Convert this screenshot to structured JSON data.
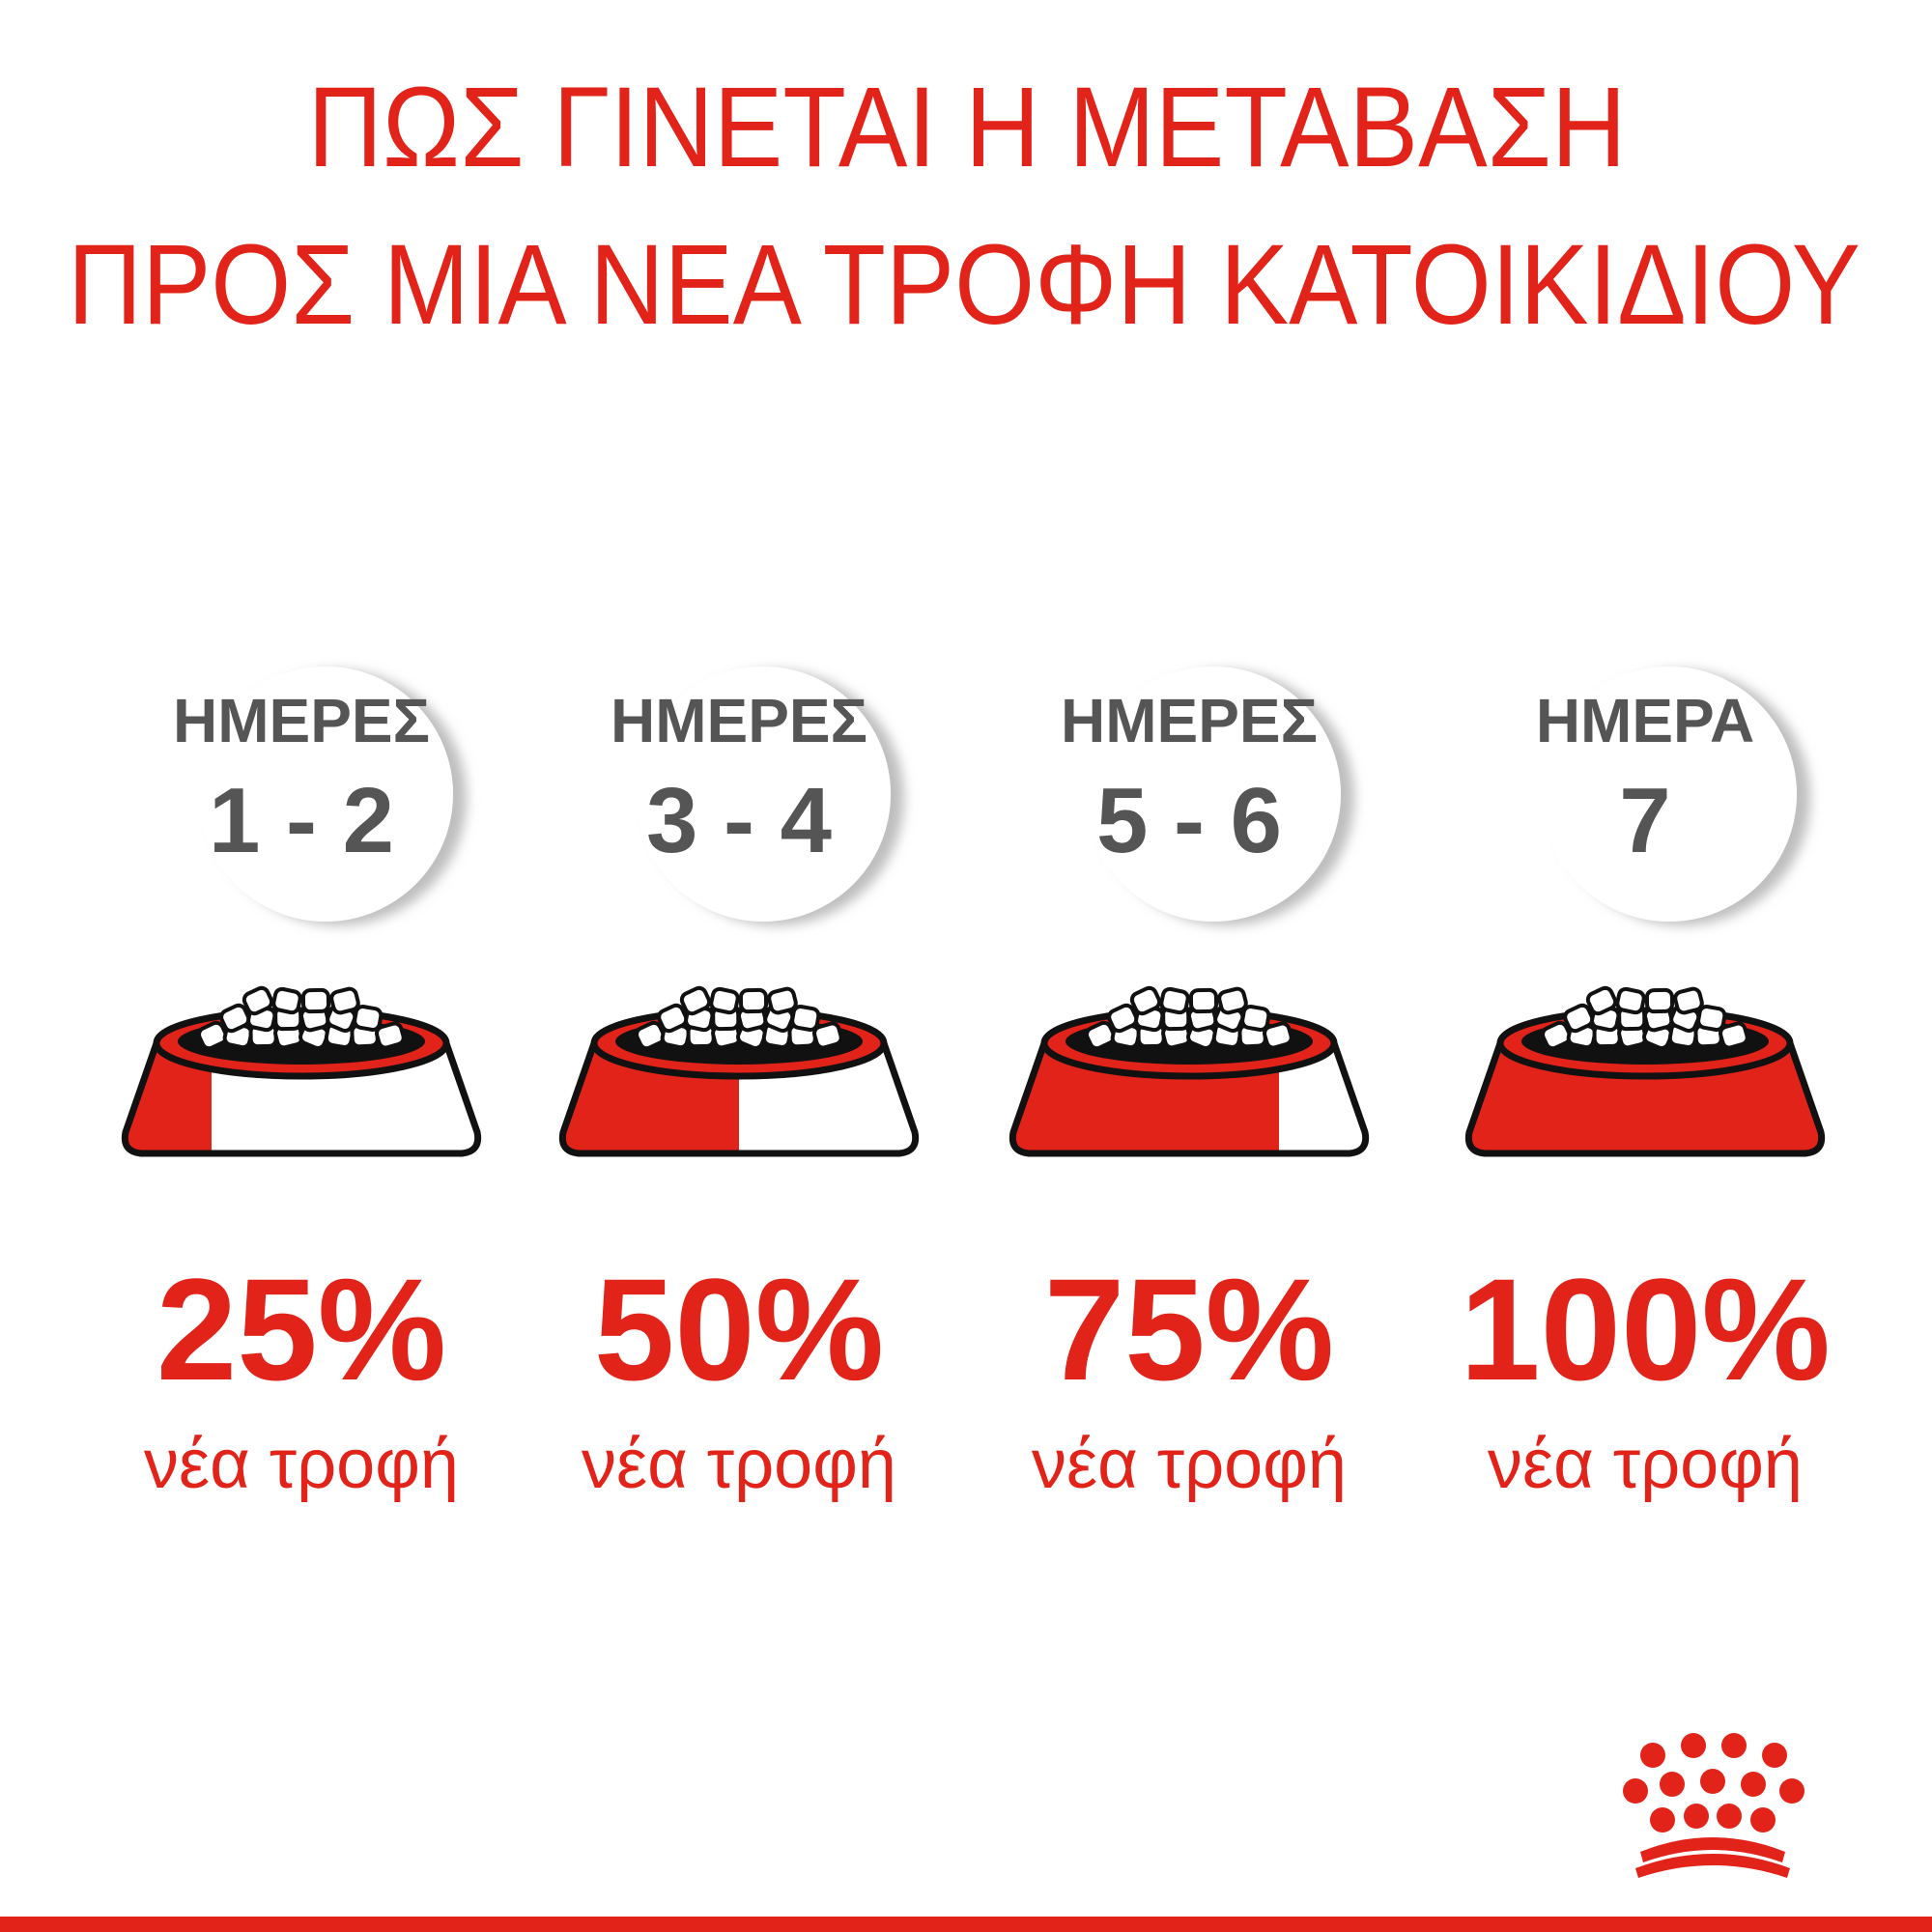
{
  "title_lines": [
    "ΠΩΣ ΓΙΝΕΤΑΙ Η ΜΕΤΑΒΑΣΗ",
    "ΠΡΟΣ ΜΙΑ ΝΕΑ ΤΡΟΦΗ ΚΑΤΟΙΚΙΔΙΟΥ"
  ],
  "steps": [
    {
      "day_label": "ΗΜΕΡΕΣ",
      "days": "1 - 2",
      "share": 25,
      "share_label": "25%",
      "caption": "νέα τροφή"
    },
    {
      "day_label": "ΗΜΕΡΕΣ",
      "days": "3 - 4",
      "share": 50,
      "share_label": "50%",
      "caption": "νέα τροφή"
    },
    {
      "day_label": "ΗΜΕΡΕΣ",
      "days": "5 - 6",
      "share": 75,
      "share_label": "75%",
      "caption": "νέα τροφή"
    },
    {
      "day_label": "ΗΜΕΡΑ",
      "days": "7",
      "share": 100,
      "share_label": "100%",
      "caption": "νέα τροφή"
    }
  ]
}
